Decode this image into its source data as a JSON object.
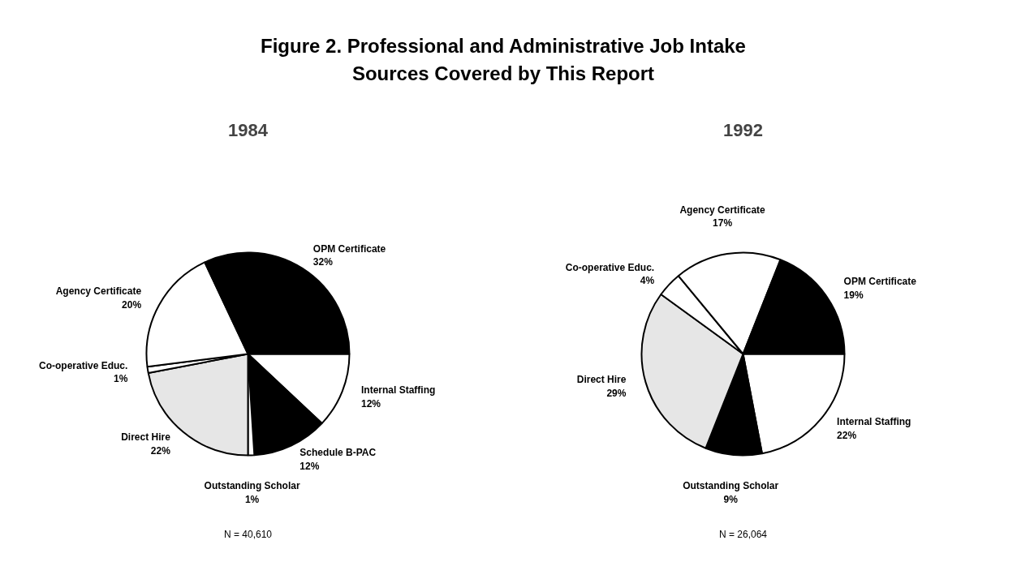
{
  "chart_data": [
    {
      "type": "pie",
      "title": "Figure 2. Professional and Administrative Job Intake Sources Covered by This Report",
      "subtitle": "1984",
      "categories": [
        "Internal Staffing",
        "Schedule B-PAC",
        "Outstanding Scholar",
        "Direct Hire",
        "Co-operative Educ.",
        "Agency Certificate",
        "OPM Certificate"
      ],
      "values": [
        12,
        12,
        1,
        22,
        1,
        20,
        32
      ],
      "value_labels": [
        "12%",
        "12%",
        "1%",
        "22%",
        "1%",
        "20%",
        "32%"
      ],
      "colors": [
        "#ffffff",
        "#000000",
        "#ffffff",
        "#e6e6e6",
        "#ffffff",
        "#ffffff",
        "#000000"
      ],
      "annotations": [
        "N = 40,610"
      ]
    },
    {
      "type": "pie",
      "subtitle": "1992",
      "categories": [
        "Internal Staffing",
        "Outstanding Scholar",
        "Direct Hire",
        "Co-operative Educ.",
        "Agency Certificate",
        "OPM Certificate"
      ],
      "values": [
        22,
        9,
        29,
        4,
        17,
        19
      ],
      "value_labels": [
        "22%",
        "9%",
        "29%",
        "4%",
        "17%",
        "19%"
      ],
      "colors": [
        "#ffffff",
        "#000000",
        "#e6e6e6",
        "#ffffff",
        "#ffffff",
        "#000000"
      ],
      "annotations": [
        "N = 26,064"
      ]
    }
  ]
}
